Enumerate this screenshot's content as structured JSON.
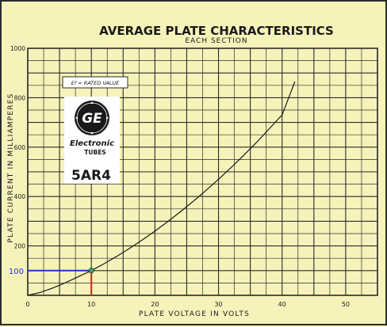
{
  "chart_data": {
    "type": "line",
    "title": "AVERAGE PLATE CHARACTERISTICS",
    "subtitle": "EACH SECTION",
    "xlabel": "PLATE VOLTAGE IN VOLTS",
    "ylabel": "PLATE CURRENT IN MILLIAMPERES",
    "xlim": [
      0,
      55
    ],
    "ylim": [
      0,
      1000
    ],
    "x_ticks": [
      "0",
      "10",
      "20",
      "30",
      "40",
      "50"
    ],
    "y_ticks": [
      "200",
      "400",
      "600",
      "800",
      "1000"
    ],
    "grid": true,
    "annotation": "Ef = RATED VALUE",
    "series": [
      {
        "x": [
          0,
          2,
          4,
          6,
          8,
          10,
          12,
          14,
          16,
          18,
          20,
          22,
          24,
          26,
          28,
          30,
          32,
          34,
          36,
          38,
          40,
          42
        ],
        "values": [
          0,
          12,
          30,
          52,
          76,
          100,
          128,
          158,
          190,
          224,
          260,
          298,
          338,
          380,
          424,
          470,
          518,
          568,
          620,
          675,
          730,
          865
        ]
      }
    ],
    "highlight": {
      "x": 10,
      "y": 100,
      "label": "100",
      "color_h": "#1e33d8",
      "color_v": "#d62020",
      "point_color": "#2aa868"
    }
  },
  "logo": {
    "monogram": "GE",
    "brand_line1": "Electronic",
    "brand_line2": "TUBES"
  },
  "tube_type": "5AR4",
  "colors": {
    "background": "#f6f3ba",
    "grid": "#2b2b2b",
    "curve": "#1a1a1a"
  }
}
